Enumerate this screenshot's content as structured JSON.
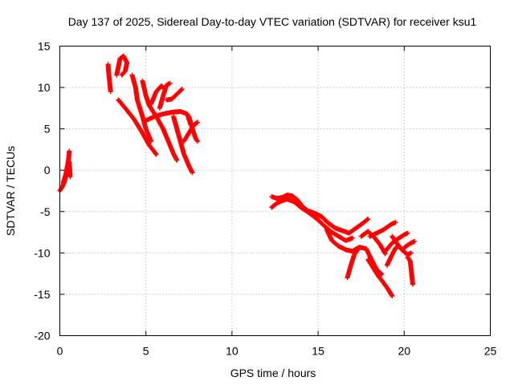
{
  "chart_data": {
    "type": "scatter",
    "title": "Day 137 of 2025, Sidereal Day-to-day VTEC variation (SDTVAR) for receiver ksu1",
    "xlabel": "GPS time / hours",
    "ylabel": "SDTVAR / TECUs",
    "xlim": [
      0,
      25
    ],
    "ylim": [
      -20,
      15
    ],
    "xticks": [
      0,
      5,
      10,
      15,
      20,
      25
    ],
    "yticks": [
      -20,
      -15,
      -10,
      -5,
      0,
      5,
      10,
      15
    ],
    "xtick_labels": [
      "0",
      "5",
      "10",
      "15",
      "20",
      "25"
    ],
    "ytick_labels": [
      "-20",
      "-15",
      "-10",
      "-5",
      "0",
      "5",
      "10",
      "15"
    ],
    "grid": true,
    "legend": "none",
    "marker": "+",
    "color": "#ff0000",
    "tracks": [
      {
        "name": "track-1",
        "points": [
          [
            0.0,
            -2.5
          ],
          [
            0.15,
            -2.0
          ],
          [
            0.3,
            -1.2
          ],
          [
            0.4,
            0.0
          ],
          [
            0.5,
            1.2
          ],
          [
            0.55,
            2.3
          ]
        ]
      },
      {
        "name": "track-2",
        "points": [
          [
            0.2,
            -1.5
          ],
          [
            0.35,
            -0.5
          ],
          [
            0.45,
            0.5
          ],
          [
            0.55,
            1.0
          ],
          [
            0.6,
            -0.8
          ]
        ]
      },
      {
        "name": "track-3",
        "points": [
          [
            2.8,
            12.8
          ],
          [
            2.85,
            11.5
          ],
          [
            2.9,
            10.5
          ],
          [
            2.95,
            9.5
          ]
        ]
      },
      {
        "name": "track-4",
        "points": [
          [
            3.3,
            11.5
          ],
          [
            3.5,
            13.5
          ],
          [
            3.7,
            13.8
          ],
          [
            3.9,
            13.0
          ],
          [
            3.8,
            12.0
          ],
          [
            3.6,
            11.5
          ]
        ]
      },
      {
        "name": "track-5",
        "points": [
          [
            3.4,
            8.5
          ],
          [
            3.8,
            7.5
          ],
          [
            4.3,
            6.2
          ],
          [
            4.8,
            4.5
          ],
          [
            5.2,
            3.0
          ],
          [
            5.5,
            2.2
          ],
          [
            5.6,
            1.9
          ]
        ]
      },
      {
        "name": "track-6",
        "points": [
          [
            4.2,
            11.5
          ],
          [
            4.4,
            10.0
          ],
          [
            4.5,
            8.5
          ],
          [
            4.8,
            6.5
          ],
          [
            5.0,
            5.0
          ],
          [
            5.3,
            3.5
          ]
        ]
      },
      {
        "name": "track-7",
        "points": [
          [
            4.8,
            10.8
          ],
          [
            5.0,
            9.0
          ],
          [
            5.2,
            7.8
          ],
          [
            5.6,
            6.5
          ],
          [
            6.0,
            5.0
          ],
          [
            6.2,
            4.0
          ],
          [
            6.4,
            3.0
          ],
          [
            6.6,
            2.0
          ],
          [
            6.8,
            1.2
          ]
        ]
      },
      {
        "name": "track-8",
        "points": [
          [
            5.3,
            8.0
          ],
          [
            5.6,
            9.5
          ],
          [
            5.9,
            10.2
          ],
          [
            6.1,
            9.8
          ]
        ]
      },
      {
        "name": "track-9",
        "points": [
          [
            5.8,
            7.5
          ],
          [
            6.0,
            9.0
          ],
          [
            6.2,
            10.3
          ],
          [
            6.4,
            10.5
          ]
        ]
      },
      {
        "name": "track-10",
        "points": [
          [
            6.2,
            8.5
          ],
          [
            6.5,
            8.6
          ],
          [
            6.8,
            9.2
          ],
          [
            7.1,
            9.8
          ]
        ]
      },
      {
        "name": "track-11",
        "points": [
          [
            5.0,
            6.0
          ],
          [
            5.5,
            6.5
          ],
          [
            6.0,
            6.8
          ],
          [
            6.5,
            7.0
          ],
          [
            7.0,
            7.1
          ],
          [
            7.4,
            6.8
          ],
          [
            7.6,
            5.5
          ]
        ]
      },
      {
        "name": "track-12",
        "points": [
          [
            6.6,
            6.5
          ],
          [
            6.8,
            5.0
          ],
          [
            7.0,
            3.5
          ],
          [
            7.2,
            2.0
          ],
          [
            7.5,
            0.5
          ],
          [
            7.7,
            -0.3
          ]
        ]
      },
      {
        "name": "track-13",
        "points": [
          [
            7.2,
            3.5
          ],
          [
            7.5,
            4.5
          ],
          [
            7.8,
            5.5
          ],
          [
            8.0,
            5.8
          ]
        ]
      },
      {
        "name": "track-14",
        "points": [
          [
            7.5,
            6.5
          ],
          [
            7.7,
            5.0
          ],
          [
            7.9,
            3.8
          ],
          [
            8.0,
            3.5
          ]
        ]
      },
      {
        "name": "track-15",
        "points": [
          [
            12.3,
            -3.2
          ],
          [
            12.6,
            -3.4
          ],
          [
            12.9,
            -3.3
          ],
          [
            13.2,
            -3.0
          ],
          [
            13.5,
            -3.1
          ],
          [
            13.8,
            -3.6
          ],
          [
            14.1,
            -4.4
          ],
          [
            14.4,
            -4.9
          ],
          [
            14.8,
            -5.2
          ],
          [
            15.2,
            -5.6
          ],
          [
            15.6,
            -6.4
          ],
          [
            16.0,
            -7.0
          ],
          [
            16.4,
            -7.3
          ],
          [
            16.8,
            -7.6
          ]
        ]
      },
      {
        "name": "track-16",
        "points": [
          [
            12.3,
            -4.5
          ],
          [
            12.6,
            -4.0
          ],
          [
            12.9,
            -3.7
          ],
          [
            13.2,
            -3.5
          ],
          [
            13.6,
            -3.8
          ],
          [
            14.0,
            -4.5
          ],
          [
            14.5,
            -5.2
          ],
          [
            15.0,
            -6.0
          ],
          [
            15.4,
            -6.8
          ],
          [
            15.8,
            -7.5
          ],
          [
            16.2,
            -8.0
          ],
          [
            16.6,
            -8.5
          ],
          [
            17.0,
            -8.2
          ]
        ]
      },
      {
        "name": "track-17",
        "points": [
          [
            15.5,
            -7.2
          ],
          [
            15.8,
            -8.5
          ],
          [
            16.2,
            -9.2
          ],
          [
            16.6,
            -9.6
          ],
          [
            17.0,
            -9.8
          ],
          [
            17.3,
            -9.4
          ]
        ]
      },
      {
        "name": "track-18",
        "points": [
          [
            16.8,
            -7.6
          ],
          [
            17.2,
            -7.0
          ],
          [
            17.6,
            -6.4
          ],
          [
            17.9,
            -5.9
          ]
        ]
      },
      {
        "name": "track-19",
        "points": [
          [
            17.5,
            -8.0
          ],
          [
            17.9,
            -7.4
          ],
          [
            18.3,
            -8.2
          ],
          [
            18.6,
            -9.0
          ],
          [
            18.9,
            -10.1
          ]
        ]
      },
      {
        "name": "track-20",
        "points": [
          [
            16.7,
            -13.0
          ],
          [
            16.9,
            -11.5
          ],
          [
            17.1,
            -10.2
          ],
          [
            17.4,
            -9.3
          ],
          [
            17.8,
            -9.5
          ],
          [
            18.1,
            -10.8
          ],
          [
            18.4,
            -12.0
          ],
          [
            18.7,
            -12.6
          ]
        ]
      },
      {
        "name": "track-21",
        "points": [
          [
            17.9,
            -10.8
          ],
          [
            18.2,
            -11.8
          ],
          [
            18.5,
            -12.8
          ],
          [
            18.8,
            -13.6
          ],
          [
            19.1,
            -14.5
          ],
          [
            19.3,
            -15.2
          ]
        ]
      },
      {
        "name": "track-22",
        "points": [
          [
            18.0,
            -8.0
          ],
          [
            18.4,
            -7.6
          ],
          [
            18.8,
            -7.2
          ],
          [
            19.2,
            -6.6
          ],
          [
            19.5,
            -6.3
          ]
        ]
      },
      {
        "name": "track-23",
        "points": [
          [
            18.9,
            -9.8
          ],
          [
            19.3,
            -8.8
          ],
          [
            19.7,
            -8.2
          ],
          [
            20.0,
            -7.8
          ],
          [
            20.2,
            -7.6
          ]
        ]
      },
      {
        "name": "track-24",
        "points": [
          [
            19.0,
            -11.5
          ],
          [
            19.3,
            -10.2
          ],
          [
            19.5,
            -9.4
          ],
          [
            19.7,
            -9.2
          ]
        ]
      },
      {
        "name": "track-25",
        "points": [
          [
            19.3,
            -8.0
          ],
          [
            19.6,
            -8.9
          ],
          [
            19.9,
            -9.7
          ],
          [
            20.2,
            -10.2
          ],
          [
            20.4,
            -10.0
          ]
        ]
      },
      {
        "name": "track-26",
        "points": [
          [
            19.9,
            -9.6
          ],
          [
            20.1,
            -9.2
          ],
          [
            20.4,
            -8.8
          ],
          [
            20.6,
            -8.6
          ]
        ]
      },
      {
        "name": "track-27",
        "points": [
          [
            20.2,
            -10.5
          ],
          [
            20.35,
            -11.0
          ],
          [
            20.5,
            -13.8
          ]
        ]
      }
    ]
  }
}
